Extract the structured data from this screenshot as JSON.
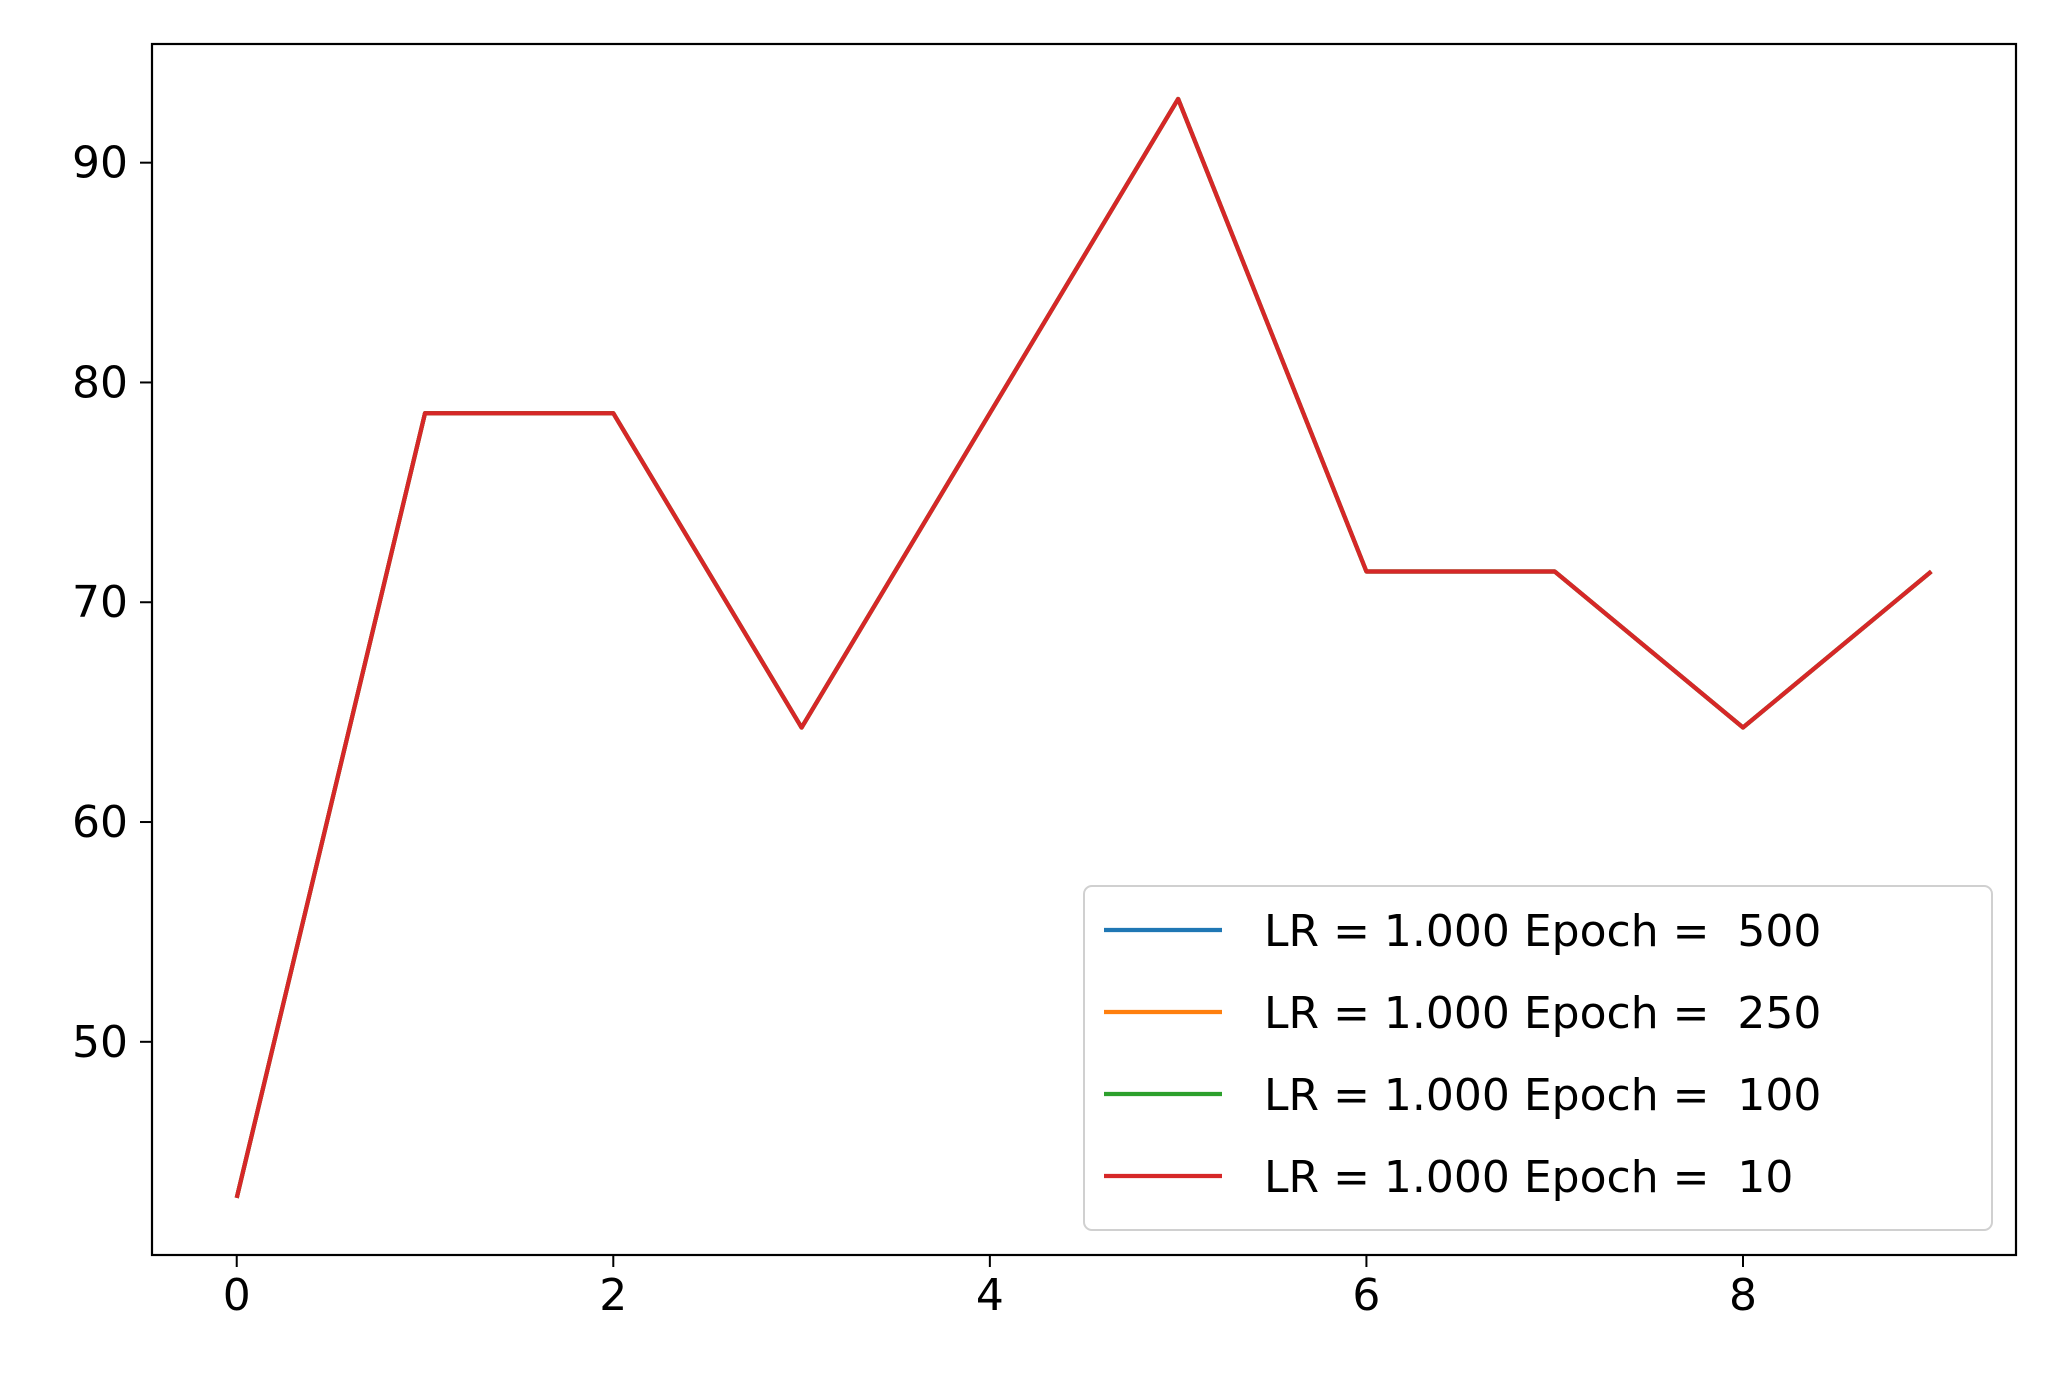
{
  "chart_data": {
    "type": "line",
    "title": "",
    "xlabel": "",
    "ylabel": "",
    "x": [
      0,
      1,
      2,
      3,
      4,
      5,
      6,
      7,
      8,
      9
    ],
    "xlim": [
      -0.45,
      9.45
    ],
    "ylim": [
      40.3,
      95.4
    ],
    "xticks": [
      0,
      2,
      4,
      6,
      8
    ],
    "yticks": [
      50,
      60,
      70,
      80,
      90
    ],
    "xtick_labels": [
      "0",
      "2",
      "4",
      "6",
      "8"
    ],
    "ytick_labels": [
      "50",
      "60",
      "70",
      "80",
      "90"
    ],
    "grid": false,
    "legend_position": "lower-right",
    "series": [
      {
        "name": "LR = 1.000 Epoch =  500",
        "color": "#1f77b4",
        "values": [
          42.9,
          78.6,
          78.6,
          64.3,
          78.6,
          92.9,
          71.4,
          71.4,
          64.3,
          71.4
        ]
      },
      {
        "name": "LR = 1.000 Epoch =  250",
        "color": "#ff7f0e",
        "values": [
          42.9,
          78.6,
          78.6,
          64.3,
          78.6,
          92.9,
          71.4,
          71.4,
          64.3,
          71.4
        ]
      },
      {
        "name": "LR = 1.000 Epoch =  100",
        "color": "#2ca02c",
        "values": [
          42.9,
          78.6,
          78.6,
          64.3,
          78.6,
          92.9,
          71.4,
          71.4,
          64.3,
          71.4
        ]
      },
      {
        "name": "LR = 1.000 Epoch =  10",
        "color": "#d62728",
        "values": [
          42.9,
          78.6,
          78.6,
          64.3,
          78.6,
          92.9,
          71.4,
          71.4,
          64.3,
          71.4
        ]
      }
    ]
  }
}
